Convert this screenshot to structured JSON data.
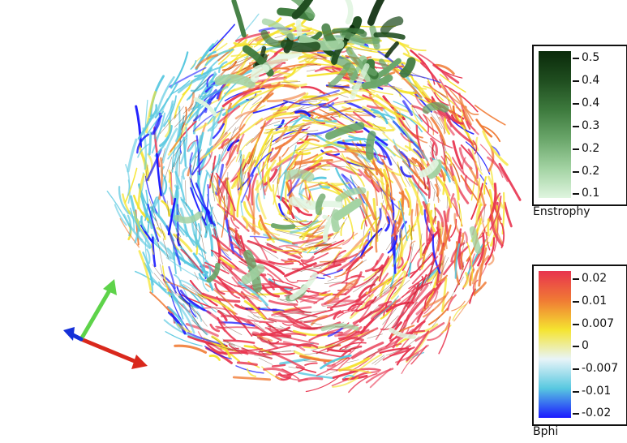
{
  "legends": {
    "enstrophy": {
      "title": "Enstrophy",
      "ticks": [
        "0.5",
        "0.4",
        "0.4",
        "0.3",
        "0.2",
        "0.2",
        "0.1"
      ],
      "colors": [
        "#0a2a0a",
        "#1f4d1f",
        "#3d7a3d",
        "#6aa66a",
        "#a3d3a3",
        "#dff5df"
      ]
    },
    "bphi": {
      "title": "Bphi",
      "ticks": [
        "0.02",
        "0.01",
        "0.007",
        "0",
        "-0.007",
        "-0.01",
        "-0.02"
      ],
      "colors": [
        "#e8344f",
        "#f07a34",
        "#f5e430",
        "#e8f4f8",
        "#58c8e0",
        "#1a1aff"
      ]
    }
  },
  "axes_triad": {
    "x_color": "#d9281c",
    "y_color": "#5ed34a",
    "z_color": "#1530d8"
  }
}
